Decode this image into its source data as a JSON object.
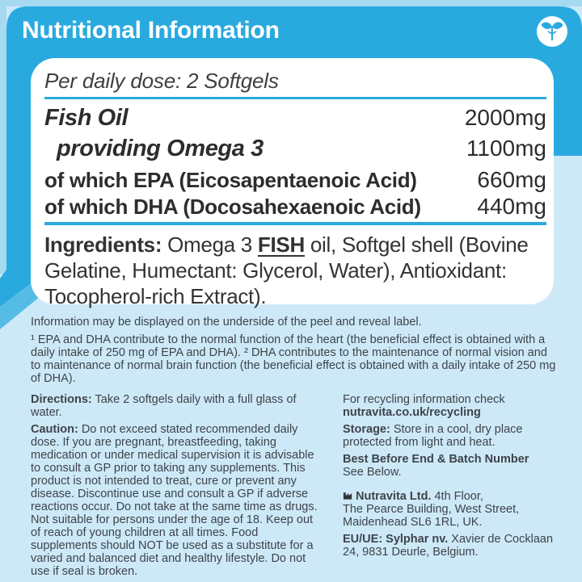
{
  "colors": {
    "panel_blue": "#29aadf",
    "margin_blue": "#a6daf1",
    "wedge_blue": "#55bce6",
    "pale_blue": "#cde9f8",
    "card_white": "#ffffff",
    "rule_cyan": "#29aadf",
    "text_dark": "#2d2d2d",
    "text_body": "#3e434a"
  },
  "header": {
    "title": "Nutritional Information",
    "badge_icon": "seedling-icon"
  },
  "panel": {
    "dose_line": "Per daily dose: 2 Softgels",
    "rows": [
      {
        "label": "Fish Oil",
        "value": "2000mg",
        "style": "bold-italic",
        "indent": false
      },
      {
        "label": "providing Omega 3",
        "value": "1100mg",
        "style": "bold-italic",
        "indent": true
      },
      {
        "label": "of which EPA (Eicosapentaenoic Acid)",
        "value": "660mg",
        "style": "semibold",
        "indent": false
      },
      {
        "label": "of which DHA (Docosahexaenoic Acid)",
        "value": "440mg",
        "style": "semibold",
        "indent": false
      }
    ],
    "ingredients_segments": [
      {
        "t": "Ingredients: ",
        "b": true
      },
      {
        "t": "Omega 3 "
      },
      {
        "t": "FISH",
        "b": true,
        "u": true
      },
      {
        "t": " oil, Softgel shell (Bovine Gelatine, Humectant: Glycerol, Water), Antioxidant: Tocopherol-rich Extract)."
      }
    ]
  },
  "notes": {
    "peel_note": "Information may be displayed on the underside of the peel and reveal label.",
    "footnote": "¹ EPA and DHA contribute to the normal function of the heart (the beneficial effect is obtained with a daily intake of 250 mg of EPA and DHA). ² DHA contributes to the maintenance of normal vision and to maintenance of normal brain function (the beneficial effect is obtained with a daily intake of 250 mg of DHA)."
  },
  "left_column": {
    "directions_segments": [
      {
        "t": "Directions:",
        "b": true
      },
      {
        "t": " Take 2 softgels daily with a full glass of water."
      }
    ],
    "caution_segments": [
      {
        "t": "Caution:",
        "b": true
      },
      {
        "t": " Do not exceed stated recommended daily dose. If you are pregnant, breastfeeding, taking medication or under medical supervision it is advisable to consult a GP prior to taking any supplements. This product is not intended to treat, cure or prevent any disease. Discontinue use and consult a GP if adverse reactions occur. Do not take at the same time as drugs. Not suitable for persons under the age of 18. Keep out of reach of young children at all times. Food supplements should NOT be used as a substitute for a varied and balanced diet and healthy lifestyle. Do not use if seal is broken."
      }
    ]
  },
  "right_column": {
    "recycling_segments": [
      {
        "t": "For recycling information check"
      },
      {
        "br": true
      },
      {
        "t": "nutravita.co.uk/recycling",
        "b": true
      }
    ],
    "storage_segments": [
      {
        "t": "Storage:",
        "b": true
      },
      {
        "t": " Store in a cool, dry place protected from light and heat."
      }
    ],
    "best_before_segments": [
      {
        "t": "Best Before End & Batch Number",
        "b": true
      },
      {
        "br": true
      },
      {
        "t": "See Below."
      }
    ],
    "uk_address_segments": [
      {
        "t": "Nutravita Ltd.",
        "b": true
      },
      {
        "t": " 4th Floor,"
      },
      {
        "br": true
      },
      {
        "t": "The Pearce Building, West Street,"
      },
      {
        "br": true
      },
      {
        "t": "Maidenhead SL6 1RL, UK."
      }
    ],
    "eu_address_segments": [
      {
        "t": "EU/UE: Sylphar nv.",
        "b": true
      },
      {
        "t": " Xavier de Cocklaan 24, 9831 Deurle, Belgium."
      }
    ]
  }
}
